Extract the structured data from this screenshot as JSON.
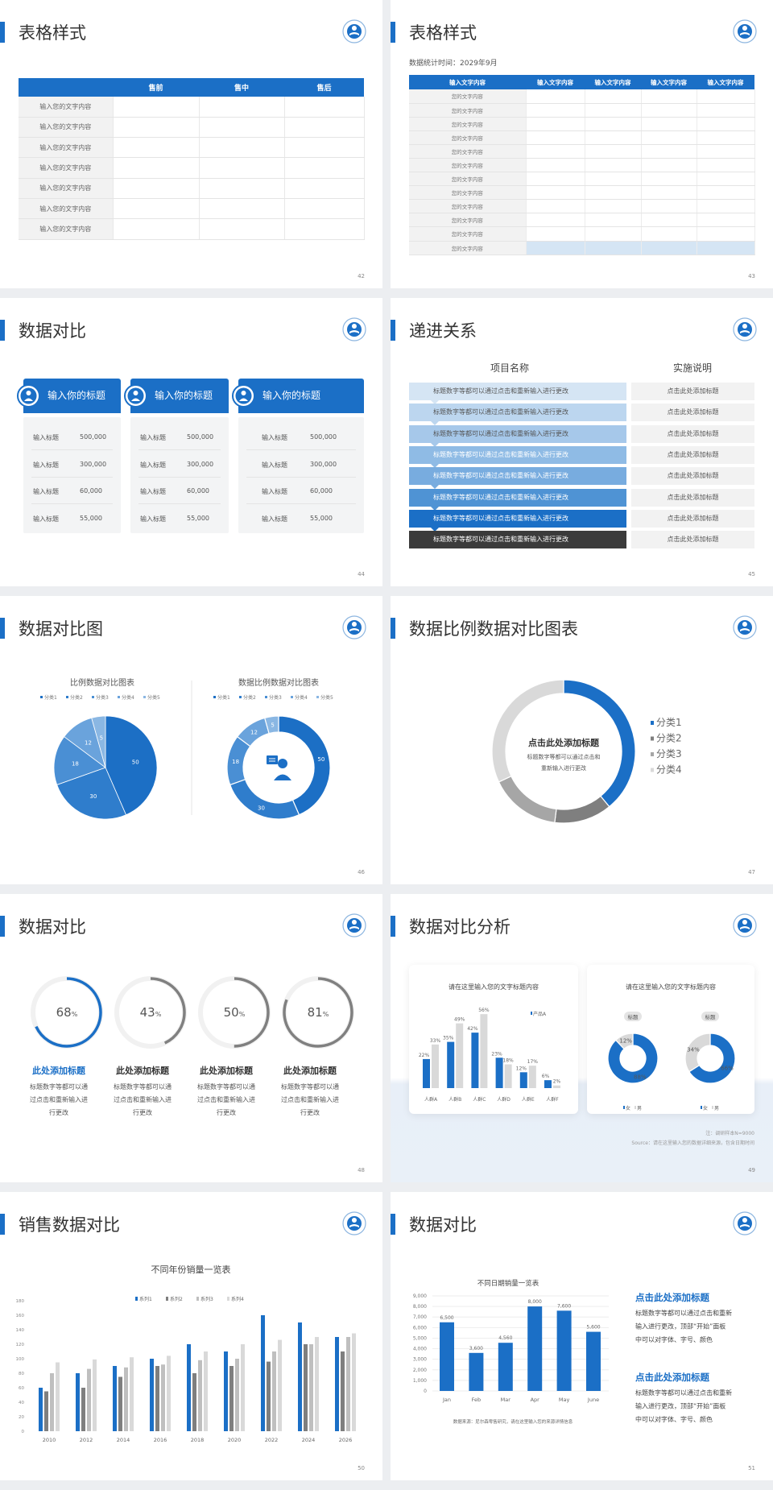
{
  "slides": [
    {
      "title": "表格样式",
      "page": "42",
      "table": {
        "headers": [
          "",
          "售前",
          "售中",
          "售后"
        ],
        "rows": [
          "输入您的文字内容",
          "输入您的文字内容",
          "输入您的文字内容",
          "输入您的文字内容",
          "输入您的文字内容",
          "输入您的文字内容",
          "输入您的文字内容"
        ]
      }
    },
    {
      "title": "表格样式",
      "page": "43",
      "subtitle": "数据统计时间：2029年9月",
      "table": {
        "headers": [
          "输入文字内容",
          "输入文字内容",
          "输入文字内容",
          "输入文字内容",
          "输入文字内容"
        ],
        "rows": [
          "您的文字内容",
          "您的文字内容",
          "您的文字内容",
          "您的文字内容",
          "您的文字内容",
          "您的文字内容",
          "您的文字内容",
          "您的文字内容",
          "您的文字内容",
          "您的文字内容",
          "您的文字内容",
          "您的文字内容"
        ]
      }
    },
    {
      "title": "数据对比",
      "page": "44",
      "cards": [
        {
          "title": "输入你的标题",
          "icon": "mobile-user-icon",
          "rows": [
            {
              "label": "输入标题",
              "value": "500,000"
            },
            {
              "label": "输入标题",
              "value": "300,000"
            },
            {
              "label": "输入标题",
              "value": "60,000"
            },
            {
              "label": "输入标题",
              "value": "55,000"
            }
          ]
        },
        {
          "title": "输入你的标题",
          "icon": "user-settings-icon",
          "rows": [
            {
              "label": "输入标题",
              "value": "500,000"
            },
            {
              "label": "输入标题",
              "value": "300,000"
            },
            {
              "label": "输入标题",
              "value": "60,000"
            },
            {
              "label": "输入标题",
              "value": "55,000"
            }
          ]
        },
        {
          "title": "输入你的标题",
          "icon": "team-icon",
          "rows": [
            {
              "label": "输入标题",
              "value": "500,000"
            },
            {
              "label": "输入标题",
              "value": "300,000"
            },
            {
              "label": "输入标题",
              "value": "60,000"
            },
            {
              "label": "输入标题",
              "value": "55,000"
            }
          ]
        }
      ]
    },
    {
      "title": "递进关系",
      "page": "45",
      "headers": [
        "项目名称",
        "实施说明"
      ],
      "rows": [
        {
          "item": "标题数字等都可以通过点击和重新输入进行更改",
          "note": "点击此处添加标题"
        },
        {
          "item": "标题数字等都可以通过点击和重新输入进行更改",
          "note": "点击此处添加标题"
        },
        {
          "item": "标题数字等都可以通过点击和重新输入进行更改",
          "note": "点击此处添加标题"
        },
        {
          "item": "标题数字等都可以通过点击和重新输入进行更改",
          "note": "点击此处添加标题"
        },
        {
          "item": "标题数字等都可以通过点击和重新输入进行更改",
          "note": "点击此处添加标题"
        },
        {
          "item": "标题数字等都可以通过点击和重新输入进行更改",
          "note": "点击此处添加标题"
        },
        {
          "item": "标题数字等都可以通过点击和重新输入进行更改",
          "note": "点击此处添加标题"
        },
        {
          "item": "标题数字等都可以通过点击和重新输入进行更改",
          "note": "点击此处添加标题"
        }
      ],
      "row_colors": [
        "#d5e5f4",
        "#bcd6ef",
        "#a6c8ea",
        "#8fbbe5",
        "#78acdf",
        "#4f93d4",
        "#1b6fc6",
        "#3b3b3b"
      ]
    },
    {
      "title": "数据对比图",
      "page": "46",
      "center_icon": "customer-service-icon"
    },
    {
      "title": "数据比例数据对比图表",
      "page": "47",
      "center_title": "点击此处添加标题",
      "center_lines": [
        "标题数字等都可以通过点击和",
        "重新输入进行更改"
      ]
    },
    {
      "title": "数据对比",
      "page": "48",
      "items": [
        {
          "title": "此处添加标题",
          "lines": [
            "标题数字等都可以通",
            "过点击和重新输入进",
            "行更改"
          ]
        },
        {
          "title": "此处添加标题",
          "lines": [
            "标题数字等都可以通",
            "过点击和重新输入进",
            "行更改"
          ]
        },
        {
          "title": "此处添加标题",
          "lines": [
            "标题数字等都可以通",
            "过点击和重新输入进",
            "行更改"
          ]
        },
        {
          "title": "此处添加标题",
          "lines": [
            "标题数字等都可以通",
            "过点击和重新输入进",
            "行更改"
          ]
        }
      ]
    },
    {
      "title": "数据对比分析",
      "page": "49",
      "card1_title": "请在这里输入您的文字标题内容",
      "card2_title": "请在这里输入您的文字标题内容",
      "note": "注：调研样本N=9000",
      "source": "Source：请在这里输入您的数据详细来源，包含日期时间"
    },
    {
      "title": "销售数据对比",
      "page": "50"
    },
    {
      "title": "数据对比",
      "page": "51",
      "source": "数据来源：尼尔森零售研究，请在这里输入您的来源详情信息",
      "blocks": [
        {
          "title": "点击此处添加标题",
          "lines": [
            "标题数字等都可以通过点击和重新",
            "输入进行更改，顶部“开始”面板",
            "中可以对字体、字号、颜色"
          ]
        },
        {
          "title": "点击此处添加标题",
          "lines": [
            "标题数字等都可以通过点击和重新",
            "输入进行更改，顶部“开始”面板",
            "中可以对字体、字号、颜色"
          ]
        }
      ]
    }
  ],
  "colors": {
    "accent": "#1b6fc6",
    "dark": "#3b3b3b"
  },
  "chart_data": [
    {
      "type": "pie",
      "title": "比例数据对比图表",
      "categories": [
        "分类1",
        "分类2",
        "分类3",
        "分类4",
        "分类5"
      ],
      "values": [
        50,
        30,
        18,
        12,
        5
      ],
      "colors": [
        "#1c6fc5",
        "#2f7dcc",
        "#4a8fd4",
        "#6aa3dc",
        "#8ab7e3"
      ],
      "legend": "top"
    },
    {
      "type": "pie",
      "variant": "donut",
      "title": "数据比例数据对比图表",
      "categories": [
        "分类1",
        "分类2",
        "分类3",
        "分类4",
        "分类5"
      ],
      "values": [
        50,
        30,
        18,
        12,
        5
      ],
      "colors": [
        "#1c6fc5",
        "#2f7dcc",
        "#4a8fd4",
        "#6aa3dc",
        "#8ab7e3"
      ],
      "legend": "top"
    },
    {
      "type": "pie",
      "variant": "donut",
      "categories": [
        "分类1",
        "分类2",
        "分类3",
        "分类4"
      ],
      "values": [
        39,
        13,
        16,
        32
      ],
      "colors": [
        "#1b6fc6",
        "#7f7f7f",
        "#a6a6a6",
        "#d9d9d9"
      ],
      "legend": "right"
    },
    {
      "type": "gauge",
      "values": [
        68,
        43,
        50,
        81
      ],
      "unit": "%",
      "colors": [
        "#1b6fc6",
        "#808080",
        "#808080",
        "#808080"
      ]
    },
    {
      "type": "bar",
      "categories": [
        "人群A",
        "人群B",
        "人群C",
        "人群D",
        "人群E",
        "人群F"
      ],
      "series": [
        {
          "name": "产品A",
          "values": [
            22,
            35,
            42,
            23,
            12,
            6
          ],
          "labels": [
            "22%",
            "35%",
            "42%",
            "23%",
            "12%",
            "6%"
          ],
          "color": "#1b6fc6"
        },
        {
          "values": [
            33,
            49,
            56,
            18,
            17,
            2
          ],
          "labels": [
            "33%",
            "49%",
            "56%",
            "18%",
            "17%",
            "2%"
          ],
          "color": "#d9d9d9"
        }
      ],
      "legend": "top-right"
    },
    {
      "type": "pie",
      "variant": "donut",
      "label": "标题",
      "categories": [
        "女",
        "男"
      ],
      "values": [
        88,
        12
      ],
      "labels": [
        "88%",
        "12%"
      ],
      "colors": [
        "#1b6fc6",
        "#d9d9d9"
      ],
      "legend": "bottom"
    },
    {
      "type": "pie",
      "variant": "donut",
      "label": "标题",
      "categories": [
        "女",
        "男"
      ],
      "values": [
        66,
        34
      ],
      "labels": [
        "66%",
        "34%"
      ],
      "colors": [
        "#1b6fc6",
        "#d9d9d9"
      ],
      "legend": "bottom"
    },
    {
      "type": "bar",
      "title": "不同年份销量一览表",
      "categories": [
        "2010",
        "2012",
        "2014",
        "2016",
        "2018",
        "2020",
        "2022",
        "2024",
        "2026"
      ],
      "series": [
        {
          "name": "系列1",
          "values": [
            60,
            80,
            90,
            100,
            120,
            110,
            160,
            150,
            130
          ],
          "color": "#1b6fc6"
        },
        {
          "name": "系列2",
          "values": [
            55,
            60,
            75,
            90,
            80,
            90,
            96,
            120,
            110
          ],
          "color": "#7f7f7f"
        },
        {
          "name": "系列3",
          "values": [
            80,
            86,
            88,
            92,
            98,
            100,
            110,
            120,
            130
          ],
          "color": "#bfbfbf"
        },
        {
          "name": "系列4",
          "values": [
            95,
            99,
            102,
            104,
            110,
            120,
            126,
            130,
            135
          ],
          "color": "#d9d9d9"
        }
      ],
      "ylim": [
        0,
        180
      ],
      "yticks": [
        "0",
        "20",
        "40",
        "60",
        "80",
        "100",
        "120",
        "140",
        "160",
        "180"
      ],
      "legend": "top"
    },
    {
      "type": "bar",
      "title": "不同日期销量一览表",
      "categories": [
        "Jan",
        "Feb",
        "Mar",
        "Apr",
        "May",
        "June"
      ],
      "values": [
        6500,
        3600,
        4560,
        8000,
        7600,
        5600
      ],
      "labels": [
        "6,500",
        "3,600",
        "4,560",
        "8,000",
        "7,600",
        "5,600"
      ],
      "ylim": [
        0,
        9000
      ],
      "yticks": [
        "0",
        "1,000",
        "2,000",
        "3,000",
        "4,000",
        "5,000",
        "6,000",
        "7,000",
        "8,000",
        "9,000"
      ],
      "grid": true,
      "color": "#1b6fc6"
    }
  ]
}
